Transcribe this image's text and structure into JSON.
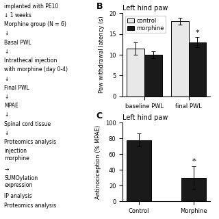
{
  "chart_data": [
    {
      "type": "bar",
      "panel": "B",
      "title": "Left hind paw",
      "categories": [
        "baseline PWL",
        "final PWL"
      ],
      "series": [
        {
          "name": "control",
          "color": "#e8e8e8",
          "values": [
            11.5,
            18.0
          ],
          "errors": [
            1.5,
            0.8
          ]
        },
        {
          "name": "morphine",
          "color": "#1a1a1a",
          "values": [
            10.0,
            13.0
          ],
          "errors": [
            0.8,
            1.2
          ]
        }
      ],
      "y_label": "Paw withdrawal latency (s)",
      "ylim": [
        0,
        20
      ],
      "yticks": [
        0,
        5,
        10,
        15,
        20
      ],
      "legend": "upper left",
      "annotations": [
        {
          "text": "*",
          "category": "final PWL",
          "series": "morphine"
        }
      ]
    },
    {
      "type": "bar",
      "panel": "C",
      "title": "Left hind paw",
      "categories": [
        "Control",
        "Morphine"
      ],
      "values": [
        78.0,
        30.0
      ],
      "errors": [
        8.0,
        15.0
      ],
      "color": "#1a1a1a",
      "y_label": "Antinociception (% MPAE)",
      "ylim": [
        0,
        100
      ],
      "yticks": [
        0,
        20,
        40,
        60,
        80,
        100
      ],
      "annotations": [
        {
          "text": "*",
          "category": "Morphine"
        }
      ]
    }
  ],
  "annotations": [
    "implanted with PE10",
    "↓ 1 weeks",
    "Morphine group (N = 6)",
    "↓",
    "Basal PWL",
    "↓",
    "Intrathecal injection",
    "with morphine (day 0-4)",
    "↓",
    "Final PWL",
    "↓",
    "MPAE",
    "↓",
    "Spinal cord tissue",
    "↓",
    "Proteomics analysis",
    "injection\nmorphine",
    "→",
    "SUMOylation\nexpression",
    "IP analysis",
    "Proteomics analysis"
  ]
}
